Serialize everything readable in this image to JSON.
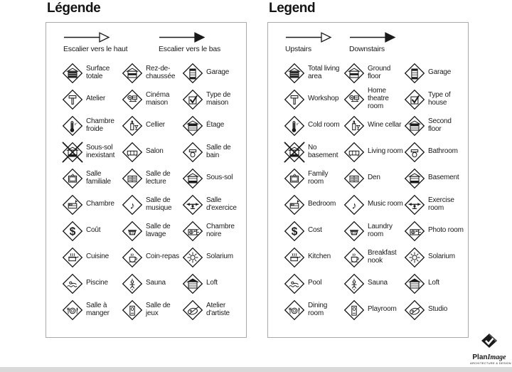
{
  "panels": [
    {
      "id": "fr",
      "title": "Légende",
      "arrows": [
        {
          "type": "open",
          "label": "Escalier vers le haut"
        },
        {
          "type": "filled",
          "label": "Escalier vers le bas"
        }
      ],
      "items": [
        {
          "icon": "total-living-area-icon",
          "label": "Surface totale"
        },
        {
          "icon": "ground-floor-icon",
          "label": "Rez-de-chaussée"
        },
        {
          "icon": "garage-icon",
          "label": "Garage"
        },
        {
          "icon": "workshop-icon",
          "label": "Atelier"
        },
        {
          "icon": "home-theatre-icon",
          "label": "Cinéma maison"
        },
        {
          "icon": "type-of-house-icon",
          "label": "Type de maison"
        },
        {
          "icon": "cold-room-icon",
          "label": "Chambre froide"
        },
        {
          "icon": "wine-cellar-icon",
          "label": "Cellier"
        },
        {
          "icon": "second-floor-icon",
          "label": "Étage"
        },
        {
          "icon": "no-basement-icon",
          "label": "Sous-sol inexistant"
        },
        {
          "icon": "living-room-icon",
          "label": "Salon"
        },
        {
          "icon": "bathroom-icon",
          "label": "Salle de bain"
        },
        {
          "icon": "family-room-icon",
          "label": "Salle familiale"
        },
        {
          "icon": "den-icon",
          "label": "Salle de lecture"
        },
        {
          "icon": "basement-icon",
          "label": "Sous-sol"
        },
        {
          "icon": "bedroom-icon",
          "label": "Chambre"
        },
        {
          "icon": "music-room-icon",
          "label": "Salle de musique"
        },
        {
          "icon": "exercise-room-icon",
          "label": "Salle d'exercice"
        },
        {
          "icon": "cost-icon",
          "label": "Coût"
        },
        {
          "icon": "laundry-room-icon",
          "label": "Salle de lavage"
        },
        {
          "icon": "photo-room-icon",
          "label": "Chambre noire"
        },
        {
          "icon": "kitchen-icon",
          "label": "Cuisine"
        },
        {
          "icon": "breakfast-nook-icon",
          "label": "Coin-repas"
        },
        {
          "icon": "solarium-icon",
          "label": "Solarium"
        },
        {
          "icon": "pool-icon",
          "label": "Piscine"
        },
        {
          "icon": "sauna-icon",
          "label": "Sauna"
        },
        {
          "icon": "loft-icon",
          "label": "Loft"
        },
        {
          "icon": "dining-room-icon",
          "label": "Salle à manger"
        },
        {
          "icon": "playroom-icon",
          "label": "Salle de jeux"
        },
        {
          "icon": "studio-icon",
          "label": "Atelier d'artiste"
        }
      ]
    },
    {
      "id": "en",
      "title": "Legend",
      "arrows": [
        {
          "type": "open",
          "label": "Upstairs"
        },
        {
          "type": "filled",
          "label": "Downstairs"
        }
      ],
      "items": [
        {
          "icon": "total-living-area-icon",
          "label": "Total living area"
        },
        {
          "icon": "ground-floor-icon",
          "label": "Ground floor"
        },
        {
          "icon": "garage-icon",
          "label": "Garage"
        },
        {
          "icon": "workshop-icon",
          "label": "Workshop"
        },
        {
          "icon": "home-theatre-icon",
          "label": "Home theatre room"
        },
        {
          "icon": "type-of-house-icon",
          "label": "Type of house"
        },
        {
          "icon": "cold-room-icon",
          "label": "Cold room"
        },
        {
          "icon": "wine-cellar-icon",
          "label": "Wine cellar"
        },
        {
          "icon": "second-floor-icon",
          "label": "Second floor"
        },
        {
          "icon": "no-basement-icon",
          "label": "No basement"
        },
        {
          "icon": "living-room-icon",
          "label": "Living room"
        },
        {
          "icon": "bathroom-icon",
          "label": "Bathroom"
        },
        {
          "icon": "family-room-icon",
          "label": "Family room"
        },
        {
          "icon": "den-icon",
          "label": "Den"
        },
        {
          "icon": "basement-icon",
          "label": "Basement"
        },
        {
          "icon": "bedroom-icon",
          "label": "Bedroom"
        },
        {
          "icon": "music-room-icon",
          "label": "Music room"
        },
        {
          "icon": "exercise-room-icon",
          "label": "Exercise room"
        },
        {
          "icon": "cost-icon",
          "label": "Cost"
        },
        {
          "icon": "laundry-room-icon",
          "label": "Laundry room"
        },
        {
          "icon": "photo-room-icon",
          "label": "Photo room"
        },
        {
          "icon": "kitchen-icon",
          "label": "Kitchen"
        },
        {
          "icon": "breakfast-nook-icon",
          "label": "Breakfast nook"
        },
        {
          "icon": "solarium-icon",
          "label": "Solarium"
        },
        {
          "icon": "pool-icon",
          "label": "Pool"
        },
        {
          "icon": "sauna-icon",
          "label": "Sauna"
        },
        {
          "icon": "loft-icon",
          "label": "Loft"
        },
        {
          "icon": "dining-room-icon",
          "label": "Dining room"
        },
        {
          "icon": "playroom-icon",
          "label": "Playroom"
        },
        {
          "icon": "studio-icon",
          "label": "Studio"
        }
      ]
    }
  ],
  "logo": {
    "name_bold": "Plan",
    "name_italic": "Image",
    "tagline": "ARCHITECTURE & DESIGN"
  },
  "colors": {
    "ink": "#1a1a1a",
    "panel_border": "#a9a9a9",
    "bottom_bar": "#d9d9d9"
  }
}
